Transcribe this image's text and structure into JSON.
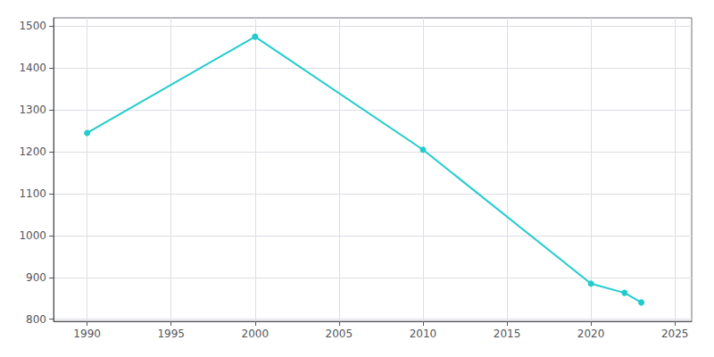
{
  "chart_data": {
    "type": "line",
    "x": [
      1990,
      2000,
      2010,
      2020,
      2022,
      2023
    ],
    "values": [
      1245,
      1475,
      1205,
      885,
      863,
      840
    ],
    "color": "#22CCCC",
    "marker": "circle",
    "xlim": [
      1988,
      2026
    ],
    "xticks": [
      1990,
      1995,
      2000,
      2005,
      2010,
      2015,
      2020,
      2025
    ],
    "ylim": [
      795,
      1520
    ],
    "yticks": [
      800,
      900,
      1000,
      1100,
      1200,
      1300,
      1400,
      1500
    ],
    "grid": true
  }
}
